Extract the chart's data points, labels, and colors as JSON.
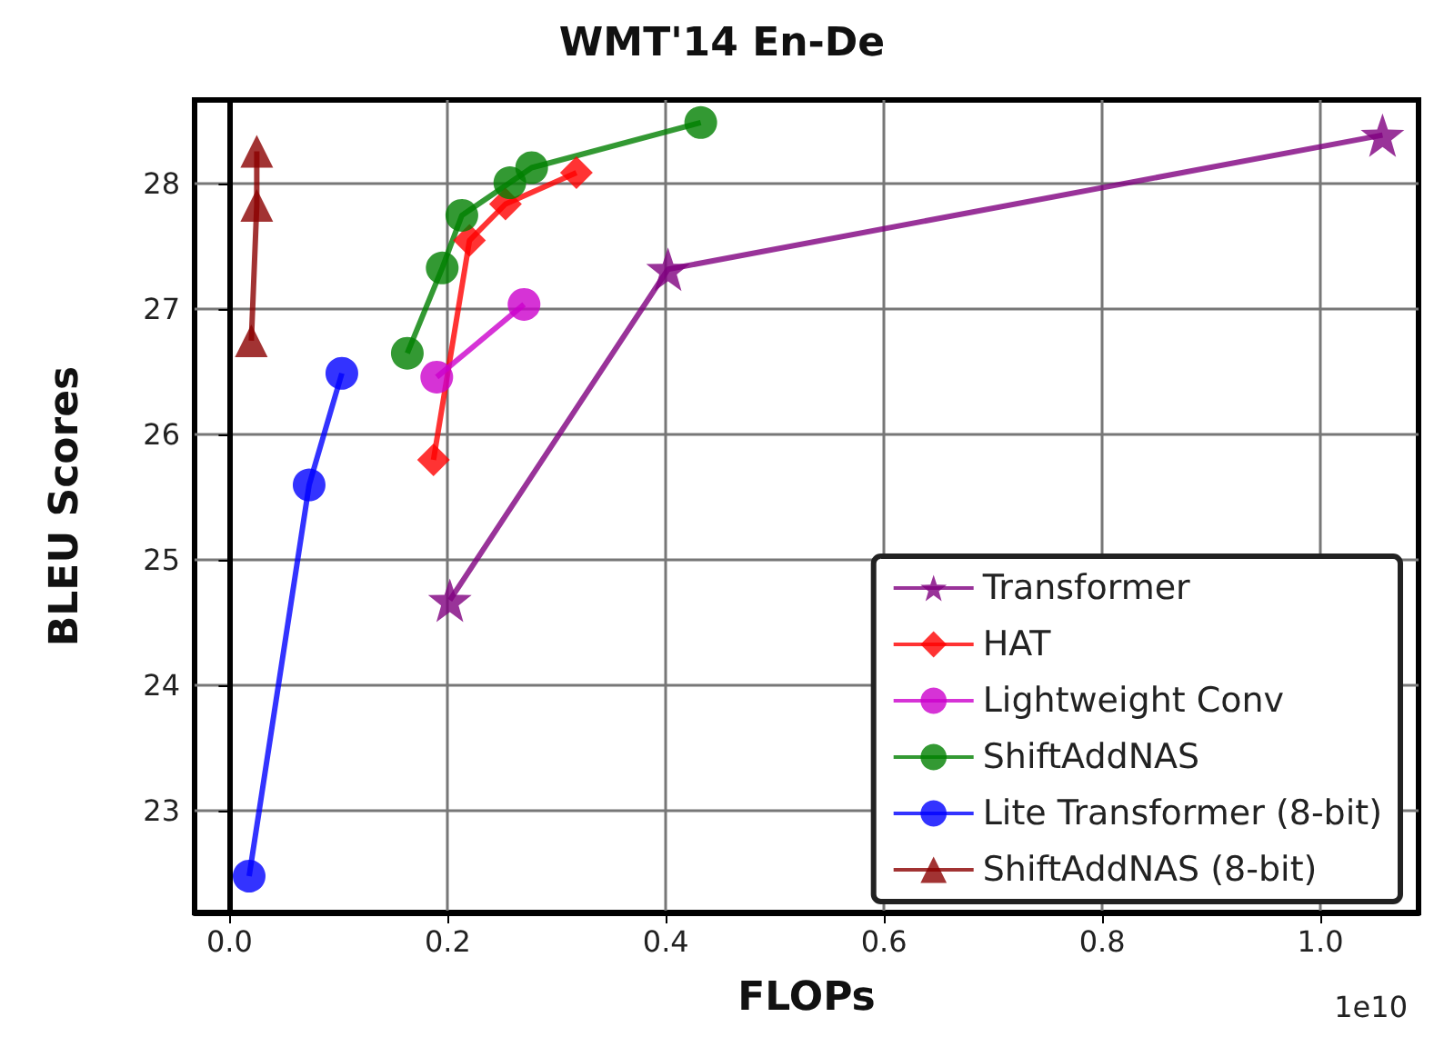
{
  "chart_data": {
    "type": "line",
    "title": "WMT'14 En-De",
    "xlabel": "FLOPs",
    "ylabel": "BLEU Scores",
    "annotations": [
      "1e10"
    ],
    "xlim": [
      -0.032,
      1.09
    ],
    "xticks": [
      {
        "value": 0,
        "label": "0.0"
      },
      0.2,
      0.4,
      0.6,
      0.8,
      {
        "value": 1,
        "label": "1.0"
      }
    ],
    "ylim": [
      22.19,
      28.67
    ],
    "yticks": [
      23,
      24,
      25,
      26,
      27,
      28
    ],
    "grid": true,
    "legend": "bottom right",
    "series": [
      {
        "name": "Transformer",
        "color": "#800080",
        "marker": "star",
        "x": [
          0.202,
          0.402,
          1.057
        ],
        "values": [
          24.68,
          27.32,
          28.39
        ]
      },
      {
        "name": "HAT",
        "color": "#ff0000",
        "marker": "diamond",
        "x": [
          0.187,
          0.22,
          0.253,
          0.318
        ],
        "values": [
          25.8,
          27.55,
          27.84,
          28.09
        ]
      },
      {
        "name": "Lightweight Conv",
        "color": "#cc00cc",
        "marker": "circle",
        "x": [
          0.19,
          0.27
        ],
        "values": [
          26.46,
          27.04
        ]
      },
      {
        "name": "ShiftAddNAS",
        "color": "#008000",
        "marker": "circle",
        "x": [
          0.163,
          0.195,
          0.213,
          0.257,
          0.277,
          0.432
        ],
        "values": [
          26.65,
          27.33,
          27.75,
          28.01,
          28.13,
          28.49
        ]
      },
      {
        "name": "Lite Transformer (8-bit)",
        "color": "#0000ff",
        "marker": "circle",
        "x": [
          0.018,
          0.073,
          0.103
        ],
        "values": [
          22.48,
          25.6,
          26.49
        ]
      },
      {
        "name": "ShiftAddNAS (8-bit)",
        "color": "#8b0000",
        "marker": "triangle",
        "x": [
          0.02,
          0.025,
          0.025
        ],
        "values": [
          26.75,
          27.83,
          28.26
        ]
      }
    ]
  }
}
